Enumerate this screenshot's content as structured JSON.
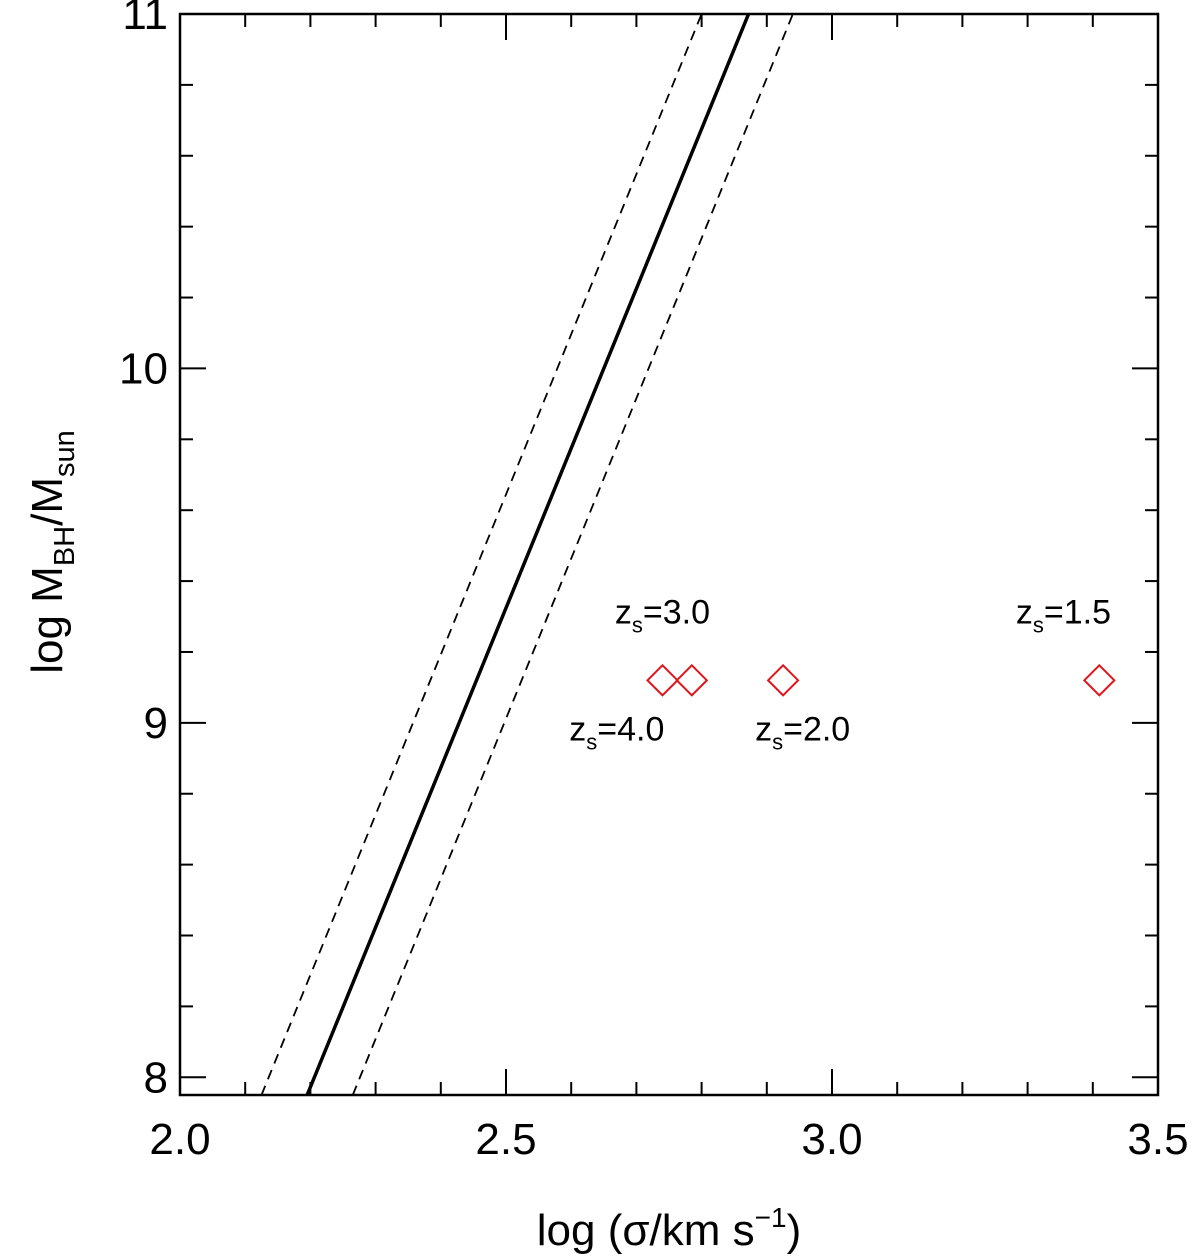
{
  "chart_data": {
    "type": "scatter",
    "title": "",
    "xlabel": {
      "prefix": "log (σ/km s",
      "sup": "−1",
      "suffix": ")"
    },
    "ylabel": {
      "prefix": "log M",
      "sub1": "BH",
      "mid": "/M",
      "sub2": "sun"
    },
    "xlim": [
      2.0,
      3.5
    ],
    "ylim": [
      7.95,
      11.0
    ],
    "x_ticks": [
      {
        "value": 2.0,
        "label": "2.0"
      },
      {
        "value": 2.5,
        "label": "2.5"
      },
      {
        "value": 3.0,
        "label": "3.0"
      },
      {
        "value": 3.5,
        "label": "3.5"
      }
    ],
    "x_minor_step": 0.1,
    "y_ticks": [
      {
        "value": 8,
        "label": "8"
      },
      {
        "value": 9,
        "label": "9"
      },
      {
        "value": 10,
        "label": "10"
      },
      {
        "value": 11,
        "label": "11"
      }
    ],
    "y_minor_step": 0.2,
    "grid": false,
    "lines": [
      {
        "style": "solid",
        "points": [
          [
            2.195,
            7.95
          ],
          [
            2.872,
            11.0
          ]
        ]
      },
      {
        "style": "dashed",
        "points": [
          [
            2.125,
            7.95
          ],
          [
            2.8,
            11.0
          ]
        ]
      },
      {
        "style": "dashed",
        "points": [
          [
            2.265,
            7.95
          ],
          [
            2.94,
            11.0
          ]
        ]
      }
    ],
    "points": [
      {
        "x": 2.74,
        "y": 9.12,
        "color": "#e0141b",
        "marker": "diamond"
      },
      {
        "x": 2.785,
        "y": 9.12,
        "color": "#e0141b",
        "marker": "diamond"
      },
      {
        "x": 2.925,
        "y": 9.12,
        "color": "#e0141b",
        "marker": "diamond"
      },
      {
        "x": 3.41,
        "y": 9.12,
        "color": "#e0141b",
        "marker": "diamond"
      }
    ],
    "annotations": [
      {
        "x": 2.74,
        "y": 9.28,
        "base": "z",
        "sub": "s",
        "text": "=3.0"
      },
      {
        "x": 2.67,
        "y": 8.95,
        "base": "z",
        "sub": "s",
        "text": "=4.0"
      },
      {
        "x": 2.955,
        "y": 8.95,
        "base": "z",
        "sub": "s",
        "text": "=2.0"
      },
      {
        "x": 3.355,
        "y": 9.28,
        "base": "z",
        "sub": "s",
        "text": "=1.5"
      }
    ]
  }
}
